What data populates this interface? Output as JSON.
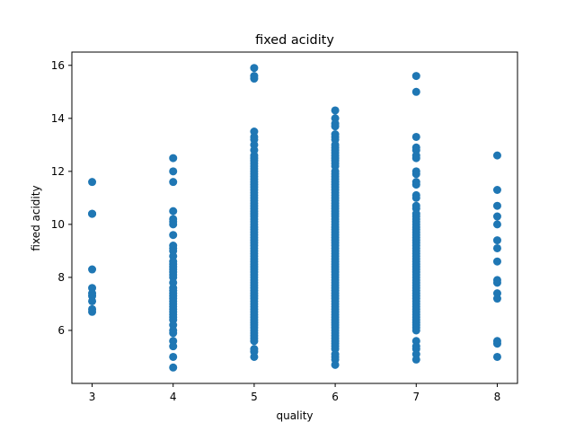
{
  "chart_data": {
    "type": "scatter",
    "title": "fixed acidity",
    "xlabel": "quality",
    "ylabel": "fixed acidity",
    "xlim": [
      2.75,
      8.25
    ],
    "ylim": [
      4.0,
      16.5
    ],
    "grid": false,
    "legend": "none",
    "x_ticks": [
      3,
      4,
      5,
      6,
      7,
      8
    ],
    "y_ticks": [
      6,
      8,
      10,
      12,
      14,
      16
    ],
    "color": "#1f77b4",
    "series": [
      {
        "points": [
          [
            3,
            11.6
          ],
          [
            3,
            10.4
          ],
          [
            3,
            10.4
          ],
          [
            3,
            8.3
          ],
          [
            3,
            7.6
          ],
          [
            3,
            7.4
          ],
          [
            3,
            7.3
          ],
          [
            3,
            7.1
          ],
          [
            3,
            6.8
          ],
          [
            3,
            6.7
          ],
          [
            4,
            12.5
          ],
          [
            4,
            12.0
          ],
          [
            4,
            11.6
          ],
          [
            4,
            10.5
          ],
          [
            4,
            10.2
          ],
          [
            4,
            10.1
          ],
          [
            4,
            10.0
          ],
          [
            4,
            9.6
          ],
          [
            4,
            9.2
          ],
          [
            4,
            9.1
          ],
          [
            4,
            9.0
          ],
          [
            4,
            8.8
          ],
          [
            4,
            8.6
          ],
          [
            4,
            8.5
          ],
          [
            4,
            8.4
          ],
          [
            4,
            8.3
          ],
          [
            4,
            8.2
          ],
          [
            4,
            8.1
          ],
          [
            4,
            8.0
          ],
          [
            4,
            7.8
          ],
          [
            4,
            7.6
          ],
          [
            4,
            7.5
          ],
          [
            4,
            7.4
          ],
          [
            4,
            7.3
          ],
          [
            4,
            7.2
          ],
          [
            4,
            7.1
          ],
          [
            4,
            7.0
          ],
          [
            4,
            6.9
          ],
          [
            4,
            6.8
          ],
          [
            4,
            6.7
          ],
          [
            4,
            6.6
          ],
          [
            4,
            6.5
          ],
          [
            4,
            6.4
          ],
          [
            4,
            6.2
          ],
          [
            4,
            6.0
          ],
          [
            4,
            5.9
          ],
          [
            4,
            5.6
          ],
          [
            4,
            5.4
          ],
          [
            4,
            5.0
          ],
          [
            4,
            4.6
          ],
          [
            5,
            15.9
          ],
          [
            5,
            15.6
          ],
          [
            5,
            15.5
          ],
          [
            5,
            13.5
          ],
          [
            5,
            13.3
          ],
          [
            5,
            13.2
          ],
          [
            5,
            13.0
          ],
          [
            5,
            12.8
          ],
          [
            5,
            12.6
          ],
          [
            5,
            12.5
          ],
          [
            5,
            12.4
          ],
          [
            5,
            12.3
          ],
          [
            5,
            12.2
          ],
          [
            5,
            12.1
          ],
          [
            5,
            12.0
          ],
          [
            5,
            11.9
          ],
          [
            5,
            11.8
          ],
          [
            5,
            11.7
          ],
          [
            5,
            11.6
          ],
          [
            5,
            11.5
          ],
          [
            5,
            11.4
          ],
          [
            5,
            11.3
          ],
          [
            5,
            11.2
          ],
          [
            5,
            11.1
          ],
          [
            5,
            11.0
          ],
          [
            5,
            10.9
          ],
          [
            5,
            10.8
          ],
          [
            5,
            10.7
          ],
          [
            5,
            10.6
          ],
          [
            5,
            10.5
          ],
          [
            5,
            10.4
          ],
          [
            5,
            10.3
          ],
          [
            5,
            10.2
          ],
          [
            5,
            10.1
          ],
          [
            5,
            10.0
          ],
          [
            5,
            9.9
          ],
          [
            5,
            9.8
          ],
          [
            5,
            9.7
          ],
          [
            5,
            9.6
          ],
          [
            5,
            9.5
          ],
          [
            5,
            9.4
          ],
          [
            5,
            9.3
          ],
          [
            5,
            9.2
          ],
          [
            5,
            9.1
          ],
          [
            5,
            9.0
          ],
          [
            5,
            8.9
          ],
          [
            5,
            8.8
          ],
          [
            5,
            8.7
          ],
          [
            5,
            8.6
          ],
          [
            5,
            8.5
          ],
          [
            5,
            8.4
          ],
          [
            5,
            8.3
          ],
          [
            5,
            8.2
          ],
          [
            5,
            8.1
          ],
          [
            5,
            8.0
          ],
          [
            5,
            7.9
          ],
          [
            5,
            7.8
          ],
          [
            5,
            7.7
          ],
          [
            5,
            7.6
          ],
          [
            5,
            7.5
          ],
          [
            5,
            7.4
          ],
          [
            5,
            7.3
          ],
          [
            5,
            7.2
          ],
          [
            5,
            7.1
          ],
          [
            5,
            7.0
          ],
          [
            5,
            6.9
          ],
          [
            5,
            6.8
          ],
          [
            5,
            6.7
          ],
          [
            5,
            6.6
          ],
          [
            5,
            6.5
          ],
          [
            5,
            6.4
          ],
          [
            5,
            6.3
          ],
          [
            5,
            6.2
          ],
          [
            5,
            6.1
          ],
          [
            5,
            6.0
          ],
          [
            5,
            5.9
          ],
          [
            5,
            5.8
          ],
          [
            5,
            5.7
          ],
          [
            5,
            5.6
          ],
          [
            5,
            5.3
          ],
          [
            5,
            5.2
          ],
          [
            5,
            5.0
          ],
          [
            6,
            14.3
          ],
          [
            6,
            14.0
          ],
          [
            6,
            13.8
          ],
          [
            6,
            13.7
          ],
          [
            6,
            13.4
          ],
          [
            6,
            13.3
          ],
          [
            6,
            13.2
          ],
          [
            6,
            13.0
          ],
          [
            6,
            12.9
          ],
          [
            6,
            12.8
          ],
          [
            6,
            12.7
          ],
          [
            6,
            12.6
          ],
          [
            6,
            12.5
          ],
          [
            6,
            12.4
          ],
          [
            6,
            12.3
          ],
          [
            6,
            12.2
          ],
          [
            6,
            12.0
          ],
          [
            6,
            11.9
          ],
          [
            6,
            11.8
          ],
          [
            6,
            11.7
          ],
          [
            6,
            11.6
          ],
          [
            6,
            11.5
          ],
          [
            6,
            11.4
          ],
          [
            6,
            11.3
          ],
          [
            6,
            11.2
          ],
          [
            6,
            11.1
          ],
          [
            6,
            11.0
          ],
          [
            6,
            10.9
          ],
          [
            6,
            10.8
          ],
          [
            6,
            10.7
          ],
          [
            6,
            10.6
          ],
          [
            6,
            10.5
          ],
          [
            6,
            10.4
          ],
          [
            6,
            10.3
          ],
          [
            6,
            10.2
          ],
          [
            6,
            10.1
          ],
          [
            6,
            10.0
          ],
          [
            6,
            9.9
          ],
          [
            6,
            9.8
          ],
          [
            6,
            9.7
          ],
          [
            6,
            9.6
          ],
          [
            6,
            9.5
          ],
          [
            6,
            9.4
          ],
          [
            6,
            9.3
          ],
          [
            6,
            9.2
          ],
          [
            6,
            9.1
          ],
          [
            6,
            9.0
          ],
          [
            6,
            8.9
          ],
          [
            6,
            8.8
          ],
          [
            6,
            8.7
          ],
          [
            6,
            8.6
          ],
          [
            6,
            8.5
          ],
          [
            6,
            8.4
          ],
          [
            6,
            8.3
          ],
          [
            6,
            8.2
          ],
          [
            6,
            8.1
          ],
          [
            6,
            8.0
          ],
          [
            6,
            7.9
          ],
          [
            6,
            7.8
          ],
          [
            6,
            7.7
          ],
          [
            6,
            7.6
          ],
          [
            6,
            7.5
          ],
          [
            6,
            7.4
          ],
          [
            6,
            7.3
          ],
          [
            6,
            7.2
          ],
          [
            6,
            7.1
          ],
          [
            6,
            7.0
          ],
          [
            6,
            6.9
          ],
          [
            6,
            6.8
          ],
          [
            6,
            6.7
          ],
          [
            6,
            6.6
          ],
          [
            6,
            6.5
          ],
          [
            6,
            6.4
          ],
          [
            6,
            6.3
          ],
          [
            6,
            6.2
          ],
          [
            6,
            6.1
          ],
          [
            6,
            6.0
          ],
          [
            6,
            5.9
          ],
          [
            6,
            5.8
          ],
          [
            6,
            5.7
          ],
          [
            6,
            5.6
          ],
          [
            6,
            5.5
          ],
          [
            6,
            5.4
          ],
          [
            6,
            5.3
          ],
          [
            6,
            5.1
          ],
          [
            6,
            5.0
          ],
          [
            6,
            4.9
          ],
          [
            6,
            4.7
          ],
          [
            7,
            15.6
          ],
          [
            7,
            15.0
          ],
          [
            7,
            13.3
          ],
          [
            7,
            12.9
          ],
          [
            7,
            12.8
          ],
          [
            7,
            12.6
          ],
          [
            7,
            12.5
          ],
          [
            7,
            12.0
          ],
          [
            7,
            11.9
          ],
          [
            7,
            11.6
          ],
          [
            7,
            11.5
          ],
          [
            7,
            11.1
          ],
          [
            7,
            11.0
          ],
          [
            7,
            10.7
          ],
          [
            7,
            10.6
          ],
          [
            7,
            10.4
          ],
          [
            7,
            10.3
          ],
          [
            7,
            10.2
          ],
          [
            7,
            10.1
          ],
          [
            7,
            10.0
          ],
          [
            7,
            9.9
          ],
          [
            7,
            9.8
          ],
          [
            7,
            9.7
          ],
          [
            7,
            9.6
          ],
          [
            7,
            9.5
          ],
          [
            7,
            9.4
          ],
          [
            7,
            9.3
          ],
          [
            7,
            9.2
          ],
          [
            7,
            9.1
          ],
          [
            7,
            9.0
          ],
          [
            7,
            8.9
          ],
          [
            7,
            8.8
          ],
          [
            7,
            8.7
          ],
          [
            7,
            8.6
          ],
          [
            7,
            8.5
          ],
          [
            7,
            8.4
          ],
          [
            7,
            8.3
          ],
          [
            7,
            8.2
          ],
          [
            7,
            8.1
          ],
          [
            7,
            8.0
          ],
          [
            7,
            7.9
          ],
          [
            7,
            7.8
          ],
          [
            7,
            7.7
          ],
          [
            7,
            7.6
          ],
          [
            7,
            7.5
          ],
          [
            7,
            7.4
          ],
          [
            7,
            7.3
          ],
          [
            7,
            7.2
          ],
          [
            7,
            7.1
          ],
          [
            7,
            7.0
          ],
          [
            7,
            6.9
          ],
          [
            7,
            6.8
          ],
          [
            7,
            6.7
          ],
          [
            7,
            6.6
          ],
          [
            7,
            6.5
          ],
          [
            7,
            6.4
          ],
          [
            7,
            6.3
          ],
          [
            7,
            6.2
          ],
          [
            7,
            6.1
          ],
          [
            7,
            6.0
          ],
          [
            7,
            5.6
          ],
          [
            7,
            5.4
          ],
          [
            7,
            5.3
          ],
          [
            7,
            5.1
          ],
          [
            7,
            4.9
          ],
          [
            8,
            12.6
          ],
          [
            8,
            11.3
          ],
          [
            8,
            10.7
          ],
          [
            8,
            10.3
          ],
          [
            8,
            10.0
          ],
          [
            8,
            9.4
          ],
          [
            8,
            9.1
          ],
          [
            8,
            8.6
          ],
          [
            8,
            7.9
          ],
          [
            8,
            7.8
          ],
          [
            8,
            7.4
          ],
          [
            8,
            7.2
          ],
          [
            8,
            5.6
          ],
          [
            8,
            5.5
          ],
          [
            8,
            5.0
          ]
        ]
      }
    ]
  }
}
